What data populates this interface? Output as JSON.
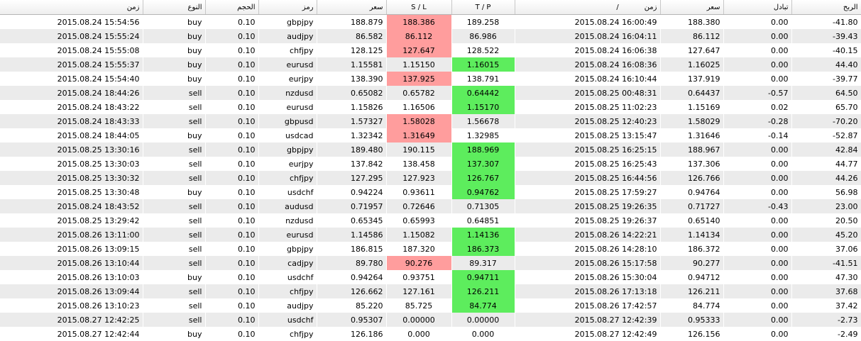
{
  "headers": {
    "open_time": "زمن",
    "type": "النوع",
    "volume": "الحجم",
    "symbol": "رمز",
    "open_price": "سعر",
    "sl": "S / L",
    "tp": "T / P",
    "sort_mark": "/",
    "close_time": "زمن",
    "close_price": "سعر",
    "swap": "تبادل",
    "profit": "الربح"
  },
  "rows": [
    {
      "open_time": "2015.08.24 15:54:56",
      "type": "buy",
      "volume": "0.10",
      "symbol": "gbpjpy",
      "open_price": "188.879",
      "sl": "188.386",
      "tp": "189.258",
      "close_time": "2015.08.24 16:00:49",
      "close_price": "188.380",
      "swap": "0.00",
      "profit": "-41.80",
      "hl": "sl"
    },
    {
      "open_time": "2015.08.24 15:55:24",
      "type": "buy",
      "volume": "0.10",
      "symbol": "audjpy",
      "open_price": "86.582",
      "sl": "86.112",
      "tp": "86.986",
      "close_time": "2015.08.24 16:04:11",
      "close_price": "86.112",
      "swap": "0.00",
      "profit": "-39.43",
      "hl": "sl"
    },
    {
      "open_time": "2015.08.24 15:55:08",
      "type": "buy",
      "volume": "0.10",
      "symbol": "chfjpy",
      "open_price": "128.125",
      "sl": "127.647",
      "tp": "128.522",
      "close_time": "2015.08.24 16:06:38",
      "close_price": "127.647",
      "swap": "0.00",
      "profit": "-40.15",
      "hl": "sl"
    },
    {
      "open_time": "2015.08.24 15:55:37",
      "type": "buy",
      "volume": "0.10",
      "symbol": "eurusd",
      "open_price": "1.15581",
      "sl": "1.15150",
      "tp": "1.16015",
      "close_time": "2015.08.24 16:08:36",
      "close_price": "1.16025",
      "swap": "0.00",
      "profit": "44.40",
      "hl": "tp"
    },
    {
      "open_time": "2015.08.24 15:54:40",
      "type": "buy",
      "volume": "0.10",
      "symbol": "eurjpy",
      "open_price": "138.390",
      "sl": "137.925",
      "tp": "138.791",
      "close_time": "2015.08.24 16:10:44",
      "close_price": "137.919",
      "swap": "0.00",
      "profit": "-39.77",
      "hl": "sl"
    },
    {
      "open_time": "2015.08.24 18:44:26",
      "type": "sell",
      "volume": "0.10",
      "symbol": "nzdusd",
      "open_price": "0.65082",
      "sl": "0.65782",
      "tp": "0.64442",
      "close_time": "2015.08.25 00:48:31",
      "close_price": "0.64437",
      "swap": "-0.57",
      "profit": "64.50",
      "hl": "tp"
    },
    {
      "open_time": "2015.08.24 18:43:22",
      "type": "sell",
      "volume": "0.10",
      "symbol": "eurusd",
      "open_price": "1.15826",
      "sl": "1.16506",
      "tp": "1.15170",
      "close_time": "2015.08.25 11:02:23",
      "close_price": "1.15169",
      "swap": "0.02",
      "profit": "65.70",
      "hl": "tp"
    },
    {
      "open_time": "2015.08.24 18:43:33",
      "type": "sell",
      "volume": "0.10",
      "symbol": "gbpusd",
      "open_price": "1.57327",
      "sl": "1.58028",
      "tp": "1.56678",
      "close_time": "2015.08.25 12:40:23",
      "close_price": "1.58029",
      "swap": "-0.28",
      "profit": "-70.20",
      "hl": "sl"
    },
    {
      "open_time": "2015.08.24 18:44:05",
      "type": "buy",
      "volume": "0.10",
      "symbol": "usdcad",
      "open_price": "1.32342",
      "sl": "1.31649",
      "tp": "1.32985",
      "close_time": "2015.08.25 13:15:47",
      "close_price": "1.31646",
      "swap": "-0.14",
      "profit": "-52.87",
      "hl": "sl"
    },
    {
      "open_time": "2015.08.25 13:30:16",
      "type": "sell",
      "volume": "0.10",
      "symbol": "gbpjpy",
      "open_price": "189.480",
      "sl": "190.115",
      "tp": "188.969",
      "close_time": "2015.08.25 16:25:15",
      "close_price": "188.967",
      "swap": "0.00",
      "profit": "42.84",
      "hl": "tp"
    },
    {
      "open_time": "2015.08.25 13:30:03",
      "type": "sell",
      "volume": "0.10",
      "symbol": "eurjpy",
      "open_price": "137.842",
      "sl": "138.458",
      "tp": "137.307",
      "close_time": "2015.08.25 16:25:43",
      "close_price": "137.306",
      "swap": "0.00",
      "profit": "44.77",
      "hl": "tp"
    },
    {
      "open_time": "2015.08.25 13:30:32",
      "type": "sell",
      "volume": "0.10",
      "symbol": "chfjpy",
      "open_price": "127.295",
      "sl": "127.923",
      "tp": "126.767",
      "close_time": "2015.08.25 16:44:56",
      "close_price": "126.766",
      "swap": "0.00",
      "profit": "44.26",
      "hl": "tp"
    },
    {
      "open_time": "2015.08.25 13:30:48",
      "type": "buy",
      "volume": "0.10",
      "symbol": "usdchf",
      "open_price": "0.94224",
      "sl": "0.93611",
      "tp": "0.94762",
      "close_time": "2015.08.25 17:59:27",
      "close_price": "0.94764",
      "swap": "0.00",
      "profit": "56.98",
      "hl": "tp"
    },
    {
      "open_time": "2015.08.24 18:43:52",
      "type": "sell",
      "volume": "0.10",
      "symbol": "audusd",
      "open_price": "0.71957",
      "sl": "0.72646",
      "tp": "0.71305",
      "close_time": "2015.08.25 19:26:35",
      "close_price": "0.71727",
      "swap": "-0.43",
      "profit": "23.00",
      "hl": ""
    },
    {
      "open_time": "2015.08.25 13:29:42",
      "type": "sell",
      "volume": "0.10",
      "symbol": "nzdusd",
      "open_price": "0.65345",
      "sl": "0.65993",
      "tp": "0.64851",
      "close_time": "2015.08.25 19:26:37",
      "close_price": "0.65140",
      "swap": "0.00",
      "profit": "20.50",
      "hl": ""
    },
    {
      "open_time": "2015.08.26 13:11:00",
      "type": "sell",
      "volume": "0.10",
      "symbol": "eurusd",
      "open_price": "1.14586",
      "sl": "1.15082",
      "tp": "1.14136",
      "close_time": "2015.08.26 14:22:21",
      "close_price": "1.14134",
      "swap": "0.00",
      "profit": "45.20",
      "hl": "tp"
    },
    {
      "open_time": "2015.08.26 13:09:15",
      "type": "sell",
      "volume": "0.10",
      "symbol": "gbpjpy",
      "open_price": "186.815",
      "sl": "187.320",
      "tp": "186.373",
      "close_time": "2015.08.26 14:28:10",
      "close_price": "186.372",
      "swap": "0.00",
      "profit": "37.06",
      "hl": "tp"
    },
    {
      "open_time": "2015.08.26 13:10:44",
      "type": "sell",
      "volume": "0.10",
      "symbol": "cadjpy",
      "open_price": "89.780",
      "sl": "90.276",
      "tp": "89.317",
      "close_time": "2015.08.26 15:17:58",
      "close_price": "90.277",
      "swap": "0.00",
      "profit": "-41.51",
      "hl": "sl"
    },
    {
      "open_time": "2015.08.26 13:10:03",
      "type": "buy",
      "volume": "0.10",
      "symbol": "usdchf",
      "open_price": "0.94264",
      "sl": "0.93751",
      "tp": "0.94711",
      "close_time": "2015.08.26 15:30:04",
      "close_price": "0.94712",
      "swap": "0.00",
      "profit": "47.30",
      "hl": "tp"
    },
    {
      "open_time": "2015.08.26 13:09:44",
      "type": "sell",
      "volume": "0.10",
      "symbol": "chfjpy",
      "open_price": "126.662",
      "sl": "127.161",
      "tp": "126.211",
      "close_time": "2015.08.26 17:13:18",
      "close_price": "126.211",
      "swap": "0.00",
      "profit": "37.68",
      "hl": "tp"
    },
    {
      "open_time": "2015.08.26 13:10:23",
      "type": "sell",
      "volume": "0.10",
      "symbol": "audjpy",
      "open_price": "85.220",
      "sl": "85.725",
      "tp": "84.774",
      "close_time": "2015.08.26 17:42:57",
      "close_price": "84.774",
      "swap": "0.00",
      "profit": "37.42",
      "hl": "tp"
    },
    {
      "open_time": "2015.08.27 12:42:25",
      "type": "sell",
      "volume": "0.10",
      "symbol": "usdchf",
      "open_price": "0.95307",
      "sl": "0.00000",
      "tp": "0.00000",
      "close_time": "2015.08.27 12:42:39",
      "close_price": "0.95333",
      "swap": "0.00",
      "profit": "-2.73",
      "hl": ""
    },
    {
      "open_time": "2015.08.27 12:42:44",
      "type": "buy",
      "volume": "0.10",
      "symbol": "chfjpy",
      "open_price": "126.186",
      "sl": "0.000",
      "tp": "0.000",
      "close_time": "2015.08.27 12:42:49",
      "close_price": "126.156",
      "swap": "0.00",
      "profit": "-2.49",
      "hl": ""
    }
  ],
  "colors": {
    "sl_hit": "#ff9d9d",
    "tp_hit": "#5ded5d",
    "row_alt": "#ebebeb"
  }
}
